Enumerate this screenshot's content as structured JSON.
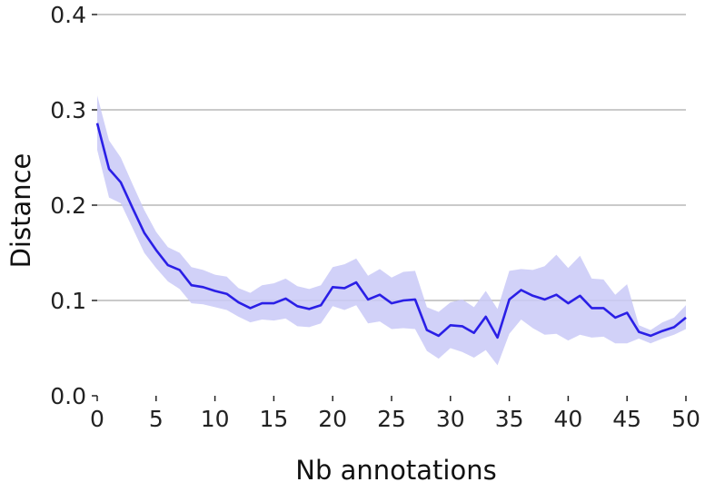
{
  "chart_data": {
    "type": "line",
    "xlabel": "Nb annotations",
    "ylabel": "Distance",
    "xlim": [
      0,
      50
    ],
    "ylim": [
      0,
      0.4
    ],
    "grid": "horizontal",
    "x_ticks": [
      "0",
      "5",
      "10",
      "15",
      "20",
      "25",
      "30",
      "35",
      "40",
      "45",
      "50"
    ],
    "y_ticks": [
      "0.0",
      "0.1",
      "0.2",
      "0.3",
      "0.4"
    ],
    "line_color": "#2a1fe6",
    "band_color": "#c9c9f7",
    "series": [
      {
        "x": [
          0,
          1,
          2,
          3,
          4,
          5,
          6,
          7,
          8,
          9,
          10,
          11,
          12,
          13,
          14,
          15,
          16,
          17,
          18,
          19,
          20,
          21,
          22,
          23,
          24,
          25,
          26,
          27,
          28,
          29,
          30,
          31,
          32,
          33,
          34,
          35,
          36,
          37,
          38,
          39,
          40,
          41,
          42,
          43,
          44,
          45,
          46,
          47,
          48,
          49,
          50
        ],
        "values": [
          0.286,
          0.238,
          0.224,
          0.197,
          0.171,
          0.153,
          0.137,
          0.132,
          0.116,
          0.114,
          0.11,
          0.107,
          0.098,
          0.092,
          0.097,
          0.097,
          0.102,
          0.094,
          0.091,
          0.095,
          0.114,
          0.113,
          0.119,
          0.101,
          0.106,
          0.097,
          0.1,
          0.101,
          0.069,
          0.063,
          0.074,
          0.073,
          0.066,
          0.083,
          0.061,
          0.101,
          0.111,
          0.105,
          0.101,
          0.106,
          0.097,
          0.105,
          0.092,
          0.092,
          0.082,
          0.087,
          0.067,
          0.063,
          0.068,
          0.072,
          0.082
        ],
        "lower": [
          0.258,
          0.208,
          0.202,
          0.176,
          0.15,
          0.134,
          0.12,
          0.112,
          0.097,
          0.096,
          0.093,
          0.09,
          0.083,
          0.077,
          0.08,
          0.079,
          0.081,
          0.073,
          0.072,
          0.076,
          0.094,
          0.09,
          0.095,
          0.076,
          0.078,
          0.07,
          0.071,
          0.07,
          0.047,
          0.039,
          0.05,
          0.046,
          0.04,
          0.048,
          0.032,
          0.065,
          0.08,
          0.071,
          0.064,
          0.065,
          0.058,
          0.064,
          0.061,
          0.062,
          0.055,
          0.055,
          0.06,
          0.055,
          0.06,
          0.064,
          0.07
        ],
        "upper": [
          0.315,
          0.268,
          0.25,
          0.222,
          0.195,
          0.172,
          0.156,
          0.15,
          0.135,
          0.132,
          0.127,
          0.125,
          0.113,
          0.108,
          0.116,
          0.118,
          0.123,
          0.115,
          0.112,
          0.116,
          0.135,
          0.138,
          0.144,
          0.126,
          0.133,
          0.124,
          0.13,
          0.131,
          0.093,
          0.088,
          0.098,
          0.101,
          0.093,
          0.11,
          0.091,
          0.131,
          0.133,
          0.132,
          0.136,
          0.148,
          0.134,
          0.147,
          0.123,
          0.122,
          0.106,
          0.117,
          0.074,
          0.069,
          0.077,
          0.082,
          0.095
        ]
      }
    ]
  }
}
